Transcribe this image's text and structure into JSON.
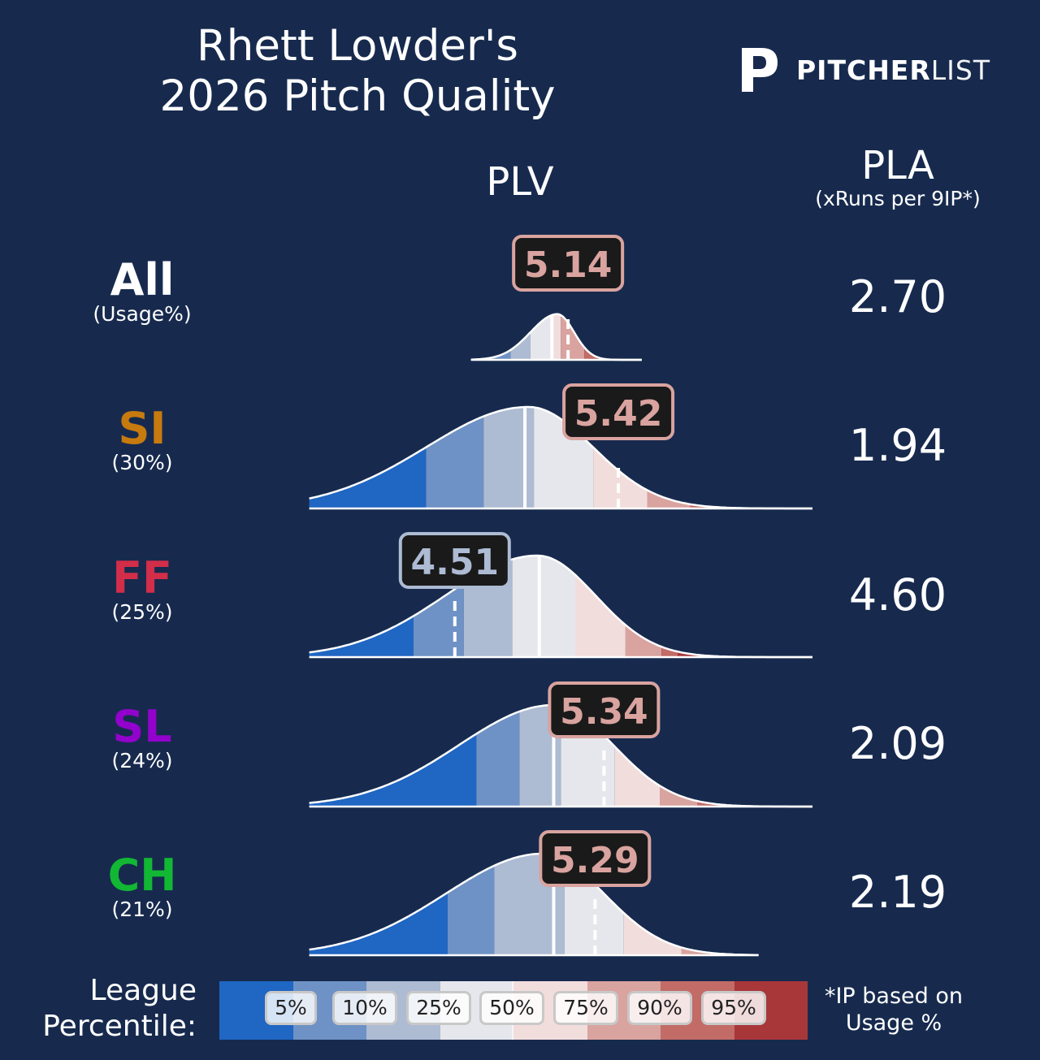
{
  "title_line1": "Rhett Lowder's",
  "title_line2": "2026 Pitch Quality",
  "logo": {
    "brand_bold": "PITCHER",
    "brand_light": "LIST"
  },
  "columns": {
    "plv": "PLV",
    "pla": "PLA",
    "pla_sub": "(xRuns per 9IP*)"
  },
  "legend": {
    "label_line1": "League",
    "label_line2": "Percentile:",
    "percentiles": [
      "5%",
      "10%",
      "25%",
      "50%",
      "75%",
      "90%",
      "95%"
    ],
    "colors": [
      "#2066c3",
      "#6e92c5",
      "#adbbd3",
      "#e6e7ec",
      "#f2dddd",
      "#d9a39f",
      "#c26b67",
      "#a8373a"
    ]
  },
  "footnote_line1": "*IP based on",
  "footnote_line2": "Usage %",
  "chart_data": {
    "type": "density",
    "x_label": "PLV",
    "xlim": [
      3.2,
      6.5
    ],
    "rows": [
      {
        "pitch": "All",
        "usage": "(Usage%)",
        "color": "#ffffff",
        "plv": 5.14,
        "plv_label": "5.14",
        "pla": "2.70",
        "median": 5.05,
        "range": [
          4.6,
          5.55
        ],
        "peak": 5.08,
        "sd": 0.11,
        "scale": 0.45,
        "percentile_cuts": [
          4.71,
          4.82,
          4.93,
          5.05,
          5.1,
          5.23,
          5.3
        ],
        "badge_color": "#d9a39f"
      },
      {
        "pitch": "SI",
        "usage": "(30%)",
        "color": "#c77a0e",
        "plv": 5.42,
        "plv_label": "5.42",
        "pla": "1.94",
        "median": 4.9,
        "range": [
          3.7,
          7.0
        ],
        "peak": 4.92,
        "sd": 0.42,
        "scale": 1.0,
        "percentile_cuts": [
          4.35,
          4.67,
          4.95,
          5.28,
          5.58,
          5.82,
          6.12
        ],
        "badge_color": "#d9a39f"
      },
      {
        "pitch": "FF",
        "usage": "(25%)",
        "color": "#d22d49",
        "plv": 4.51,
        "plv_label": "4.51",
        "pla": "4.60",
        "median": 4.98,
        "range": [
          3.7,
          6.6
        ],
        "peak": 4.97,
        "sd": 0.38,
        "scale": 1.0,
        "percentile_cuts": [
          4.28,
          4.56,
          4.83,
          5.18,
          5.46,
          5.66,
          5.75
        ],
        "badge_color": "#adbbd3"
      },
      {
        "pitch": "SL",
        "usage": "(24%)",
        "color": "#9302cc",
        "plv": 5.34,
        "plv_label": "5.34",
        "pla": "2.09",
        "median": 5.06,
        "range": [
          3.7,
          7.0
        ],
        "peak": 5.06,
        "sd": 0.39,
        "scale": 1.0,
        "percentile_cuts": [
          4.63,
          4.87,
          5.1,
          5.4,
          5.65,
          5.86,
          6.04
        ],
        "badge_color": "#d9a39f"
      },
      {
        "pitch": "CH",
        "usage": "(21%)",
        "color": "#12b833",
        "plv": 5.29,
        "plv_label": "5.29",
        "pla": "2.19",
        "median": 5.06,
        "range": [
          3.7,
          6.2
        ],
        "peak": 5.0,
        "sd": 0.4,
        "scale": 1.0,
        "percentile_cuts": [
          4.47,
          4.73,
          5.12,
          5.45,
          5.77,
          5.96,
          6.2
        ],
        "badge_color": "#d9a39f"
      }
    ]
  }
}
